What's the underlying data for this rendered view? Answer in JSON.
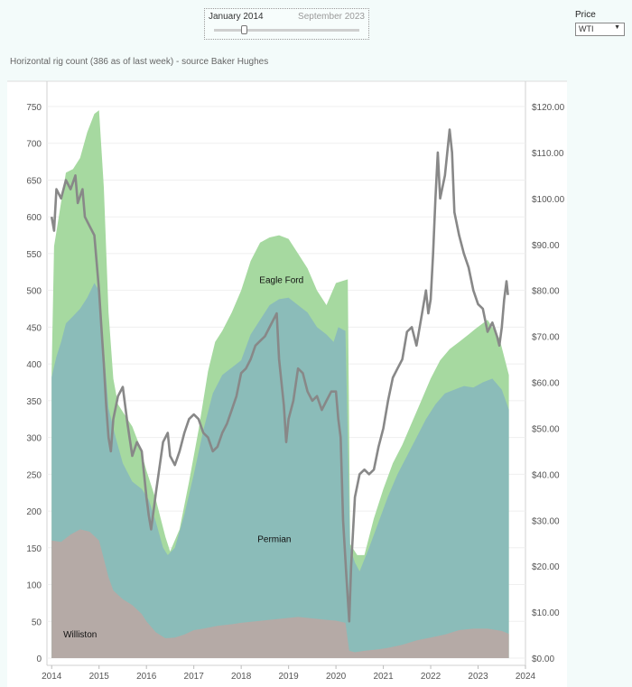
{
  "filter": {
    "start_label": "January 2014",
    "end_label": "September 2023",
    "selected_fraction": 0.2
  },
  "price_selector": {
    "label": "Price",
    "value": "WTI"
  },
  "chart_data": {
    "type": "area",
    "title": "Horizontal rig count (386 as of last week) - source Baker Hughes",
    "x_ticks": [
      "2014",
      "2015",
      "2016",
      "2017",
      "2018",
      "2019",
      "2020",
      "2021",
      "2022",
      "2023",
      "2024"
    ],
    "xlim": [
      2013.9,
      2024
    ],
    "y_left_ticks": [
      "0",
      "50",
      "100",
      "150",
      "200",
      "250",
      "300",
      "350",
      "400",
      "450",
      "500",
      "550",
      "600",
      "650",
      "700",
      "750"
    ],
    "ylim_left": [
      0,
      750
    ],
    "y_right_ticks": [
      "$0.00",
      "$10.00",
      "$20.00",
      "$30.00",
      "$40.00",
      "$50.00",
      "$60.00",
      "$70.00",
      "$80.00",
      "$90.00",
      "$100.00",
      "$110.00",
      "$120.00"
    ],
    "ylim_right": [
      0,
      120
    ],
    "stack_order": [
      "Williston",
      "Permian",
      "Eagle Ford"
    ],
    "series": [
      {
        "name": "Williston",
        "kind": "area",
        "color": "#b5aaa6",
        "label_point": [
          2014.6,
          28
        ],
        "points": [
          [
            2014.0,
            160
          ],
          [
            2014.2,
            158
          ],
          [
            2014.4,
            168
          ],
          [
            2014.6,
            175
          ],
          [
            2014.8,
            172
          ],
          [
            2015.0,
            160
          ],
          [
            2015.1,
            135
          ],
          [
            2015.2,
            110
          ],
          [
            2015.3,
            92
          ],
          [
            2015.5,
            80
          ],
          [
            2015.7,
            72
          ],
          [
            2015.9,
            60
          ],
          [
            2016.0,
            50
          ],
          [
            2016.2,
            35
          ],
          [
            2016.4,
            27
          ],
          [
            2016.6,
            28
          ],
          [
            2016.8,
            32
          ],
          [
            2017.0,
            38
          ],
          [
            2017.2,
            40
          ],
          [
            2017.5,
            44
          ],
          [
            2017.8,
            46
          ],
          [
            2018.0,
            48
          ],
          [
            2018.3,
            50
          ],
          [
            2018.6,
            52
          ],
          [
            2018.9,
            54
          ],
          [
            2019.2,
            56
          ],
          [
            2019.5,
            54
          ],
          [
            2019.8,
            52
          ],
          [
            2020.0,
            51
          ],
          [
            2020.2,
            48
          ],
          [
            2020.28,
            10
          ],
          [
            2020.4,
            8
          ],
          [
            2020.6,
            10
          ],
          [
            2020.9,
            12
          ],
          [
            2021.1,
            14
          ],
          [
            2021.4,
            18
          ],
          [
            2021.7,
            24
          ],
          [
            2022.0,
            28
          ],
          [
            2022.3,
            32
          ],
          [
            2022.6,
            38
          ],
          [
            2022.9,
            40
          ],
          [
            2023.2,
            40
          ],
          [
            2023.5,
            37
          ],
          [
            2023.65,
            33
          ]
        ]
      },
      {
        "name": "Permian",
        "kind": "area",
        "color": "#8bbcb9",
        "label_point": [
          2018.7,
          158
        ],
        "points": [
          [
            2014.0,
            382
          ],
          [
            2014.1,
            410
          ],
          [
            2014.2,
            430
          ],
          [
            2014.3,
            455
          ],
          [
            2014.45,
            465
          ],
          [
            2014.6,
            475
          ],
          [
            2014.75,
            490
          ],
          [
            2014.9,
            510
          ],
          [
            2015.0,
            500
          ],
          [
            2015.1,
            420
          ],
          [
            2015.2,
            340
          ],
          [
            2015.35,
            300
          ],
          [
            2015.5,
            265
          ],
          [
            2015.7,
            240
          ],
          [
            2015.9,
            230
          ],
          [
            2016.05,
            215
          ],
          [
            2016.2,
            185
          ],
          [
            2016.35,
            150
          ],
          [
            2016.45,
            140
          ],
          [
            2016.6,
            150
          ],
          [
            2016.8,
            195
          ],
          [
            2017.0,
            250
          ],
          [
            2017.2,
            310
          ],
          [
            2017.4,
            360
          ],
          [
            2017.6,
            385
          ],
          [
            2017.8,
            395
          ],
          [
            2018.0,
            405
          ],
          [
            2018.2,
            440
          ],
          [
            2018.4,
            460
          ],
          [
            2018.6,
            480
          ],
          [
            2018.8,
            488
          ],
          [
            2019.0,
            490
          ],
          [
            2019.2,
            480
          ],
          [
            2019.4,
            470
          ],
          [
            2019.6,
            450
          ],
          [
            2019.8,
            440
          ],
          [
            2019.95,
            430
          ],
          [
            2020.05,
            450
          ],
          [
            2020.2,
            445
          ],
          [
            2020.3,
            150
          ],
          [
            2020.4,
            130
          ],
          [
            2020.5,
            118
          ],
          [
            2020.7,
            150
          ],
          [
            2020.9,
            185
          ],
          [
            2021.1,
            220
          ],
          [
            2021.3,
            250
          ],
          [
            2021.5,
            275
          ],
          [
            2021.7,
            300
          ],
          [
            2021.9,
            325
          ],
          [
            2022.1,
            345
          ],
          [
            2022.3,
            360
          ],
          [
            2022.5,
            365
          ],
          [
            2022.7,
            370
          ],
          [
            2022.9,
            368
          ],
          [
            2023.1,
            375
          ],
          [
            2023.3,
            380
          ],
          [
            2023.5,
            365
          ],
          [
            2023.65,
            338
          ]
        ]
      },
      {
        "name": "Eagle Ford",
        "kind": "area",
        "color": "#a6d9a0",
        "label_point": [
          2018.85,
          510
        ],
        "points": [
          [
            2014.0,
            390
          ],
          [
            2014.05,
            560
          ],
          [
            2014.2,
            620
          ],
          [
            2014.3,
            660
          ],
          [
            2014.45,
            665
          ],
          [
            2014.6,
            680
          ],
          [
            2014.75,
            715
          ],
          [
            2014.9,
            740
          ],
          [
            2015.0,
            745
          ],
          [
            2015.1,
            640
          ],
          [
            2015.2,
            470
          ],
          [
            2015.3,
            380
          ],
          [
            2015.4,
            345
          ],
          [
            2015.55,
            330
          ],
          [
            2015.7,
            315
          ],
          [
            2015.85,
            290
          ],
          [
            2016.0,
            255
          ],
          [
            2016.2,
            215
          ],
          [
            2016.4,
            165
          ],
          [
            2016.5,
            145
          ],
          [
            2016.7,
            175
          ],
          [
            2016.9,
            240
          ],
          [
            2017.1,
            310
          ],
          [
            2017.3,
            390
          ],
          [
            2017.45,
            430
          ],
          [
            2017.6,
            445
          ],
          [
            2017.8,
            470
          ],
          [
            2018.0,
            500
          ],
          [
            2018.2,
            540
          ],
          [
            2018.4,
            565
          ],
          [
            2018.6,
            572
          ],
          [
            2018.8,
            575
          ],
          [
            2019.0,
            570
          ],
          [
            2019.2,
            550
          ],
          [
            2019.4,
            530
          ],
          [
            2019.6,
            500
          ],
          [
            2019.8,
            480
          ],
          [
            2020.0,
            510
          ],
          [
            2020.25,
            515
          ],
          [
            2020.3,
            155
          ],
          [
            2020.45,
            140
          ],
          [
            2020.6,
            140
          ],
          [
            2020.8,
            190
          ],
          [
            2021.0,
            230
          ],
          [
            2021.2,
            265
          ],
          [
            2021.4,
            290
          ],
          [
            2021.6,
            320
          ],
          [
            2021.8,
            350
          ],
          [
            2022.0,
            380
          ],
          [
            2022.2,
            405
          ],
          [
            2022.4,
            420
          ],
          [
            2022.6,
            430
          ],
          [
            2022.8,
            440
          ],
          [
            2022.95,
            448
          ],
          [
            2023.2,
            460
          ],
          [
            2023.45,
            435
          ],
          [
            2023.65,
            385
          ]
        ]
      },
      {
        "name": "WTI",
        "kind": "line",
        "axis": "right",
        "color": "#888888",
        "points": [
          [
            2014.0,
            96
          ],
          [
            2014.05,
            93
          ],
          [
            2014.1,
            102
          ],
          [
            2014.2,
            100
          ],
          [
            2014.3,
            104
          ],
          [
            2014.4,
            102
          ],
          [
            2014.5,
            105
          ],
          [
            2014.55,
            99
          ],
          [
            2014.65,
            102
          ],
          [
            2014.7,
            96
          ],
          [
            2014.8,
            94
          ],
          [
            2014.9,
            92
          ],
          [
            2015.0,
            80
          ],
          [
            2015.05,
            72
          ],
          [
            2015.1,
            64
          ],
          [
            2015.15,
            55
          ],
          [
            2015.2,
            48
          ],
          [
            2015.25,
            45
          ],
          [
            2015.3,
            52
          ],
          [
            2015.4,
            57
          ],
          [
            2015.5,
            59
          ],
          [
            2015.6,
            51
          ],
          [
            2015.7,
            44
          ],
          [
            2015.8,
            47
          ],
          [
            2015.9,
            45
          ],
          [
            2016.0,
            35
          ],
          [
            2016.05,
            31
          ],
          [
            2016.1,
            28
          ],
          [
            2016.2,
            36
          ],
          [
            2016.35,
            47
          ],
          [
            2016.45,
            49
          ],
          [
            2016.5,
            44
          ],
          [
            2016.6,
            42
          ],
          [
            2016.7,
            45
          ],
          [
            2016.8,
            49
          ],
          [
            2016.9,
            52
          ],
          [
            2017.0,
            53
          ],
          [
            2017.1,
            52
          ],
          [
            2017.2,
            49
          ],
          [
            2017.3,
            48
          ],
          [
            2017.4,
            45
          ],
          [
            2017.5,
            46
          ],
          [
            2017.6,
            49
          ],
          [
            2017.7,
            51
          ],
          [
            2017.8,
            54
          ],
          [
            2017.9,
            57
          ],
          [
            2018.0,
            62
          ],
          [
            2018.1,
            63
          ],
          [
            2018.2,
            65
          ],
          [
            2018.3,
            68
          ],
          [
            2018.4,
            69
          ],
          [
            2018.5,
            70
          ],
          [
            2018.6,
            72
          ],
          [
            2018.75,
            75
          ],
          [
            2018.8,
            65
          ],
          [
            2018.9,
            55
          ],
          [
            2018.95,
            47
          ],
          [
            2019.0,
            52
          ],
          [
            2019.1,
            56
          ],
          [
            2019.2,
            63
          ],
          [
            2019.3,
            62
          ],
          [
            2019.4,
            58
          ],
          [
            2019.5,
            56
          ],
          [
            2019.6,
            57
          ],
          [
            2019.7,
            54
          ],
          [
            2019.8,
            56
          ],
          [
            2019.9,
            58
          ],
          [
            2020.0,
            58
          ],
          [
            2020.05,
            52
          ],
          [
            2020.1,
            48
          ],
          [
            2020.15,
            30
          ],
          [
            2020.22,
            18
          ],
          [
            2020.28,
            8
          ],
          [
            2020.32,
            20
          ],
          [
            2020.4,
            35
          ],
          [
            2020.5,
            40
          ],
          [
            2020.6,
            41
          ],
          [
            2020.7,
            40
          ],
          [
            2020.8,
            41
          ],
          [
            2020.9,
            46
          ],
          [
            2021.0,
            50
          ],
          [
            2021.1,
            56
          ],
          [
            2021.2,
            61
          ],
          [
            2021.3,
            63
          ],
          [
            2021.4,
            65
          ],
          [
            2021.5,
            71
          ],
          [
            2021.6,
            72
          ],
          [
            2021.7,
            68
          ],
          [
            2021.8,
            74
          ],
          [
            2021.9,
            80
          ],
          [
            2021.95,
            75
          ],
          [
            2022.0,
            78
          ],
          [
            2022.05,
            88
          ],
          [
            2022.1,
            100
          ],
          [
            2022.15,
            110
          ],
          [
            2022.2,
            100
          ],
          [
            2022.3,
            105
          ],
          [
            2022.4,
            115
          ],
          [
            2022.45,
            110
          ],
          [
            2022.5,
            97
          ],
          [
            2022.6,
            92
          ],
          [
            2022.7,
            88
          ],
          [
            2022.8,
            85
          ],
          [
            2022.9,
            80
          ],
          [
            2023.0,
            77
          ],
          [
            2023.1,
            76
          ],
          [
            2023.2,
            71
          ],
          [
            2023.3,
            73
          ],
          [
            2023.4,
            70
          ],
          [
            2023.45,
            68
          ],
          [
            2023.5,
            72
          ],
          [
            2023.55,
            78
          ],
          [
            2023.6,
            82
          ],
          [
            2023.63,
            79
          ]
        ]
      }
    ]
  }
}
